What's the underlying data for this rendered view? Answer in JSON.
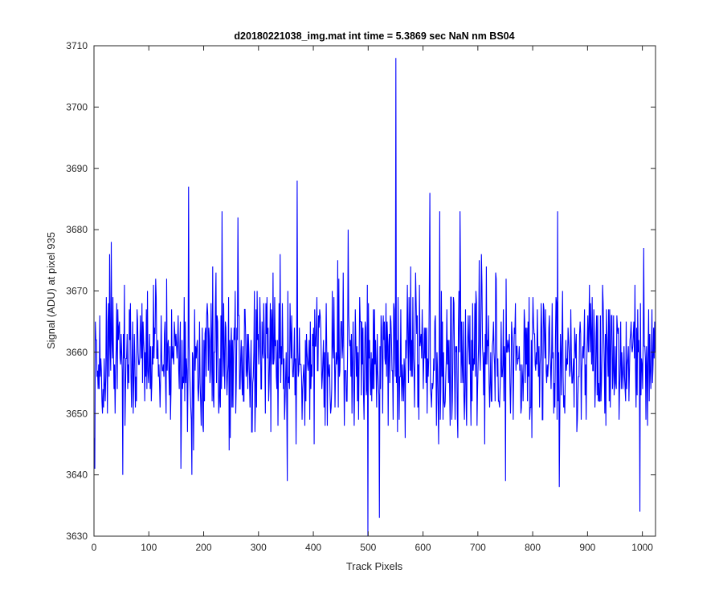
{
  "chart_data": {
    "type": "line",
    "title": "d20180221038_img.mat int time = 5.3869 sec  NaN nm BS04",
    "xlabel": "Track Pixels",
    "ylabel": "Signal (ADU) at pixel 935",
    "xlim": [
      0,
      1024
    ],
    "ylim": [
      3630,
      3710
    ],
    "xticks": [
      0,
      100,
      200,
      300,
      400,
      500,
      600,
      700,
      800,
      900,
      1000
    ],
    "yticks": [
      3630,
      3640,
      3650,
      3660,
      3670,
      3680,
      3690,
      3700,
      3710
    ],
    "grid": false,
    "legend": "none",
    "series": [
      {
        "color": "#0000ff",
        "n_points": 1024,
        "mean": 3659,
        "min": 3630,
        "max": 3708,
        "notable_points": [
          {
            "x": 1,
            "y": 3641
          },
          {
            "x": 52,
            "y": 3640
          },
          {
            "x": 158,
            "y": 3641
          },
          {
            "x": 172,
            "y": 3687
          },
          {
            "x": 178,
            "y": 3640
          },
          {
            "x": 233,
            "y": 3683
          },
          {
            "x": 262,
            "y": 3682
          },
          {
            "x": 352,
            "y": 3639
          },
          {
            "x": 370,
            "y": 3688
          },
          {
            "x": 463,
            "y": 3680
          },
          {
            "x": 499,
            "y": 3630
          },
          {
            "x": 520,
            "y": 3633
          },
          {
            "x": 550,
            "y": 3708
          },
          {
            "x": 612,
            "y": 3686
          },
          {
            "x": 630,
            "y": 3683
          },
          {
            "x": 667,
            "y": 3683
          },
          {
            "x": 750,
            "y": 3639
          },
          {
            "x": 845,
            "y": 3683
          },
          {
            "x": 848,
            "y": 3638
          },
          {
            "x": 995,
            "y": 3634
          },
          {
            "x": 1002,
            "y": 3677
          }
        ]
      }
    ]
  }
}
